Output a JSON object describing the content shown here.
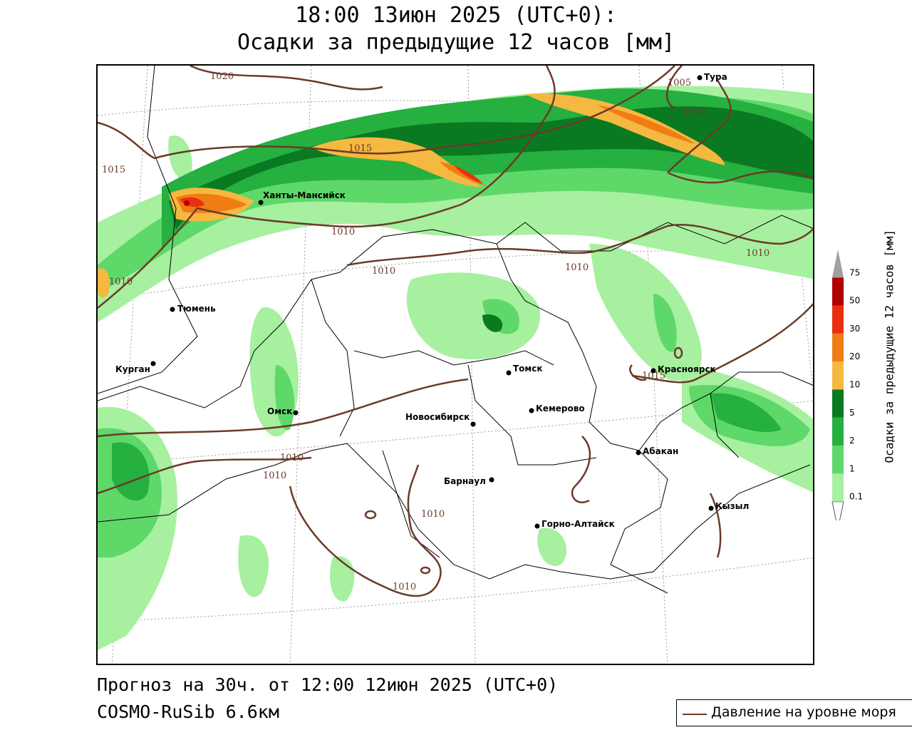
{
  "title": {
    "line1": "18:00 13июн 2025 (UTC+0):",
    "line2": "Осадки за предыдущие 12 часов [мм]"
  },
  "footer": {
    "forecast": "Прогноз на 30ч. от 12:00 12июн 2025 (UTC+0)",
    "model": "COSMO-RuSib 6.6км"
  },
  "legend": {
    "isobar_label": "Давление на уровне моря",
    "isobar_color": "#6b3a28"
  },
  "colorbar": {
    "label": "Осадки за предыдущие 12 часов [мм]",
    "ticks": [
      "0.1",
      "1",
      "2",
      "5",
      "10",
      "20",
      "30",
      "50",
      "75"
    ],
    "colors": [
      "#a6f0a0",
      "#5fd86a",
      "#25b040",
      "#0a7a22",
      "#f5b840",
      "#f07d14",
      "#e83010",
      "#b00000",
      "#a0a0a0"
    ]
  },
  "cities": [
    {
      "name": "Тура"
    },
    {
      "name": "Ханты-Мансийск"
    },
    {
      "name": "Тюмень"
    },
    {
      "name": "Курган"
    },
    {
      "name": "Омск"
    },
    {
      "name": "Томск"
    },
    {
      "name": "Красноярск"
    },
    {
      "name": "Новосибирск"
    },
    {
      "name": "Кемерово"
    },
    {
      "name": "Абакан"
    },
    {
      "name": "Барнаул"
    },
    {
      "name": "Кызыл"
    },
    {
      "name": "Горно-Алтайск"
    }
  ],
  "isobar_labels": [
    "1020",
    "1015",
    "1015",
    "1010",
    "1010",
    "1010",
    "1010",
    "1010",
    "1005",
    "1005",
    "1015",
    "1010",
    "1010",
    "1010",
    "1010"
  ]
}
